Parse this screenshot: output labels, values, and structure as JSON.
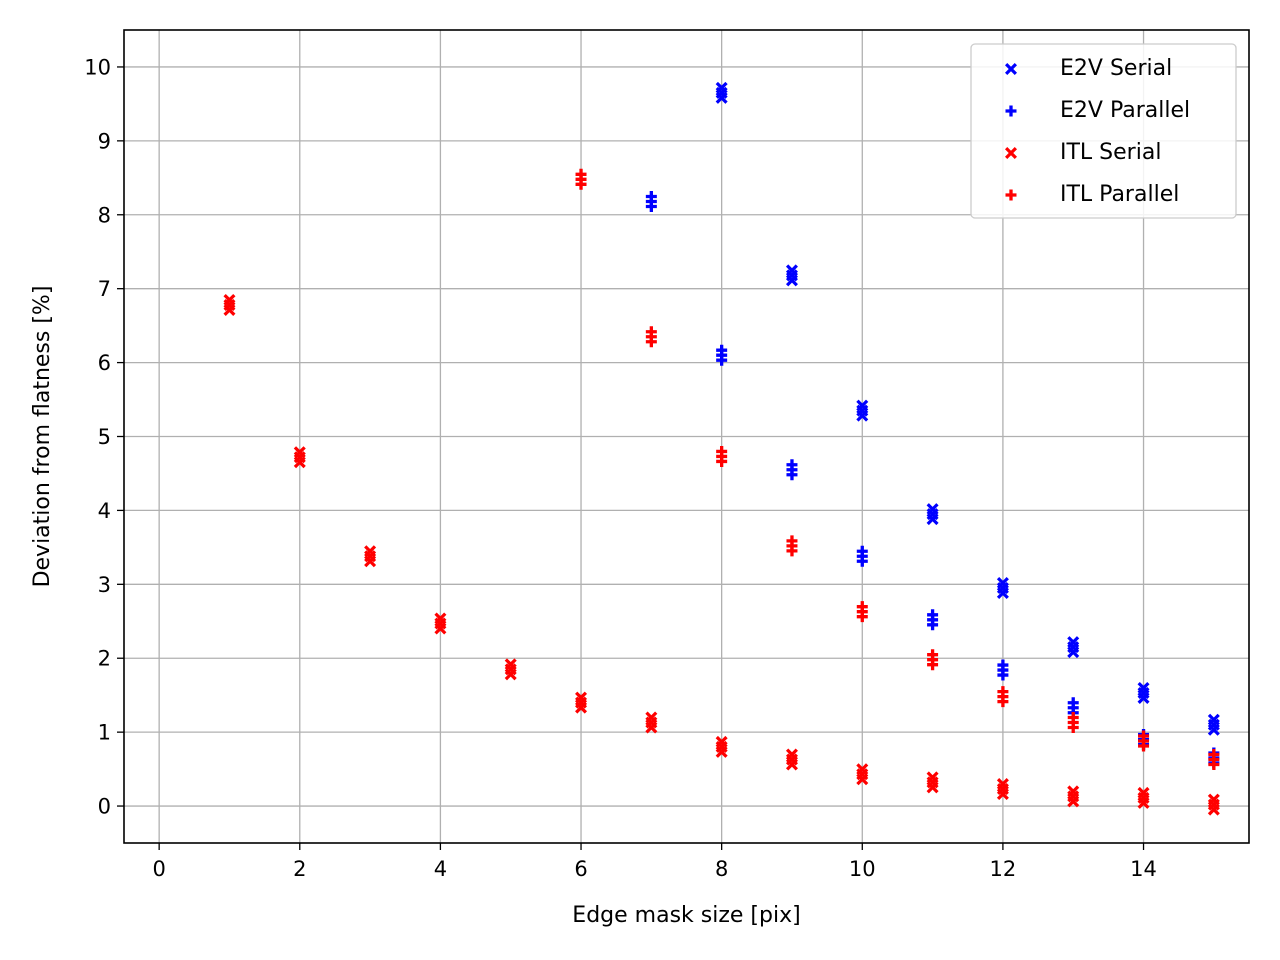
{
  "chart_data": {
    "type": "scatter",
    "title": "",
    "xlabel": "Edge mask size [pix]",
    "ylabel": "Deviation from flatness [%]",
    "xlim": [
      -0.5,
      15.5
    ],
    "ylim": [
      -0.5,
      10.5
    ],
    "xticks": [
      "0",
      "2",
      "4",
      "6",
      "8",
      "10",
      "12",
      "14"
    ],
    "yticks": [
      "0",
      "1",
      "2",
      "3",
      "4",
      "5",
      "6",
      "7",
      "8",
      "9",
      "10"
    ],
    "grid": true,
    "legend_position": "top-right",
    "series": [
      {
        "name": "E2V Serial",
        "marker": "x-filled",
        "color": "#0000ff",
        "x": [
          8,
          9,
          10,
          11,
          12,
          13,
          14,
          15
        ],
        "y": [
          9.65,
          7.18,
          5.35,
          3.95,
          2.95,
          2.15,
          1.53,
          1.1
        ]
      },
      {
        "name": "E2V Parallel",
        "marker": "plus-filled",
        "color": "#0000ff",
        "x": [
          7,
          8,
          9,
          10,
          11,
          12,
          13,
          14,
          15
        ],
        "y": [
          8.18,
          6.1,
          4.55,
          3.38,
          2.52,
          1.84,
          1.33,
          0.9,
          0.65
        ]
      },
      {
        "name": "ITL Serial",
        "marker": "x-filled",
        "color": "#ff0000",
        "x": [
          1,
          2,
          3,
          4,
          5,
          6,
          7,
          8,
          9,
          10,
          11,
          12,
          13,
          14,
          15
        ],
        "y": [
          6.78,
          4.72,
          3.38,
          2.47,
          1.85,
          1.4,
          1.13,
          0.8,
          0.63,
          0.43,
          0.32,
          0.23,
          0.13,
          0.11,
          0.02
        ]
      },
      {
        "name": "ITL Parallel",
        "marker": "plus-filled",
        "color": "#ff0000",
        "x": [
          6,
          7,
          8,
          9,
          10,
          11,
          12,
          13,
          14,
          15
        ],
        "y": [
          8.48,
          6.35,
          4.73,
          3.52,
          2.63,
          1.98,
          1.48,
          1.13,
          0.88,
          0.63
        ]
      }
    ]
  }
}
